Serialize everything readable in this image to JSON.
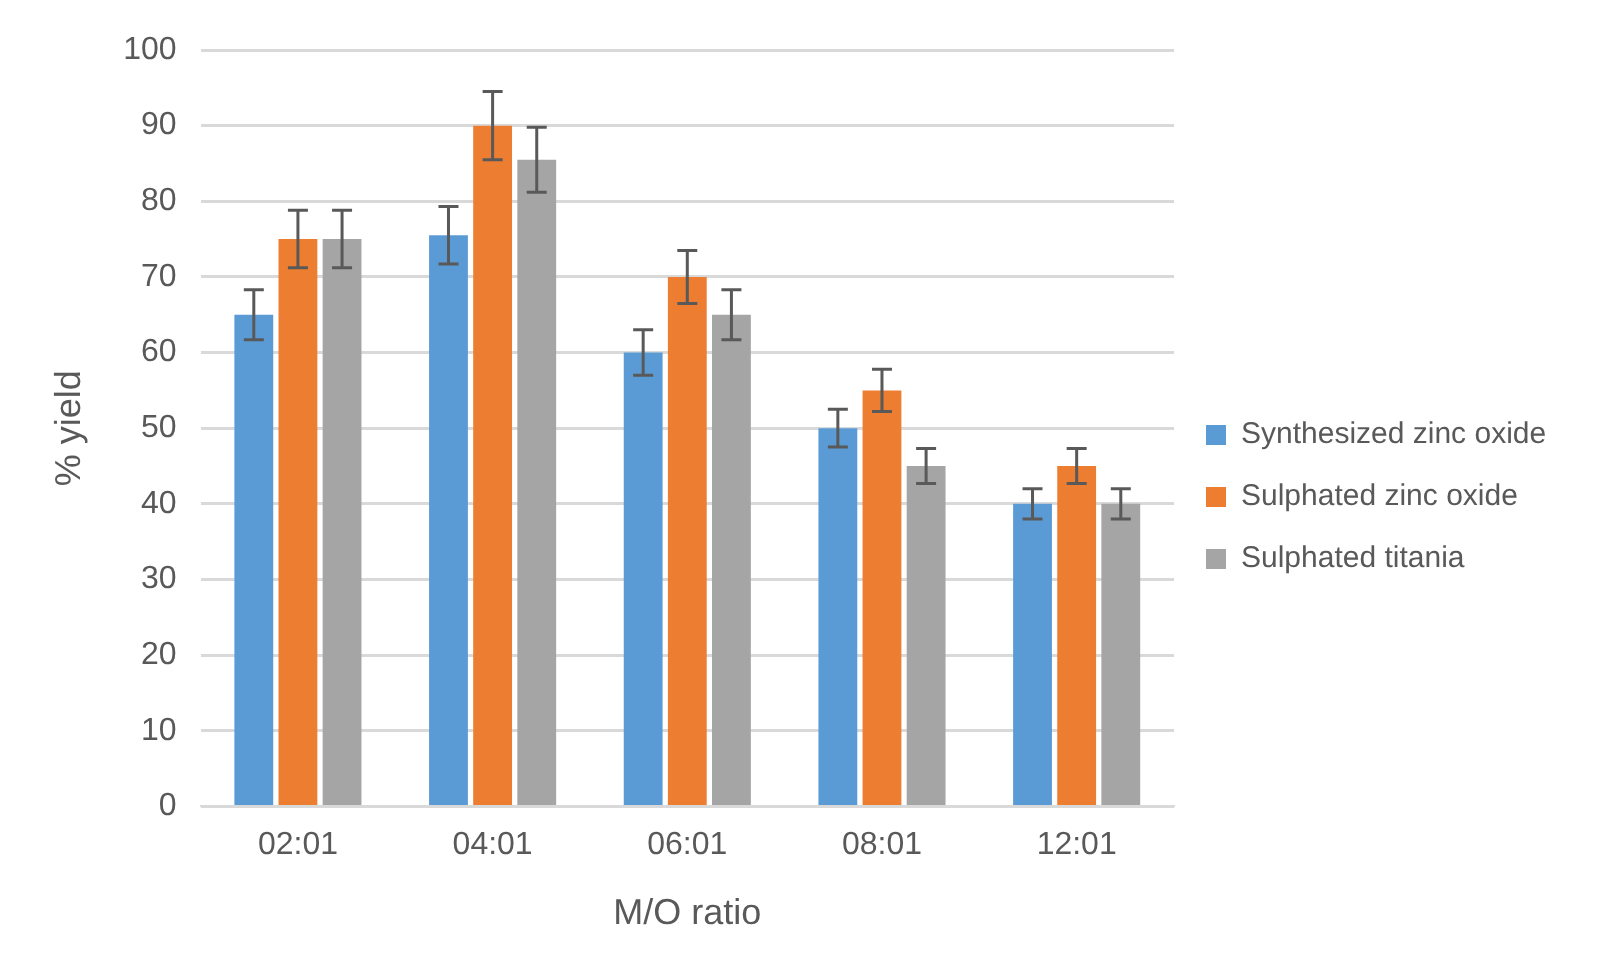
{
  "chart_data": {
    "type": "bar",
    "xlabel": "M/O ratio",
    "ylabel": "% yield",
    "categories": [
      "02:01",
      "04:01",
      "06:01",
      "08:01",
      "12:01"
    ],
    "series": [
      {
        "name": "Synthesized zinc oxide",
        "color": "#5b9bd5",
        "values": [
          65,
          75.5,
          60,
          50,
          40
        ],
        "errors": [
          3.3,
          3.8,
          3,
          2.5,
          2
        ]
      },
      {
        "name": "Sulphated zinc oxide",
        "color": "#ed7d31",
        "values": [
          75,
          90,
          70,
          55,
          45
        ],
        "errors": [
          3.8,
          4.5,
          3.5,
          2.8,
          2.3
        ]
      },
      {
        "name": "Sulphated titania",
        "color": "#a5a5a5",
        "values": [
          75,
          85.5,
          65,
          45,
          40
        ],
        "errors": [
          3.8,
          4.3,
          3.3,
          2.3,
          2
        ]
      }
    ],
    "ylim": [
      0,
      100
    ],
    "yticks": [
      0,
      10,
      20,
      30,
      40,
      50,
      60,
      70,
      80,
      90,
      100
    ],
    "grid": "y",
    "legend": "right"
  }
}
